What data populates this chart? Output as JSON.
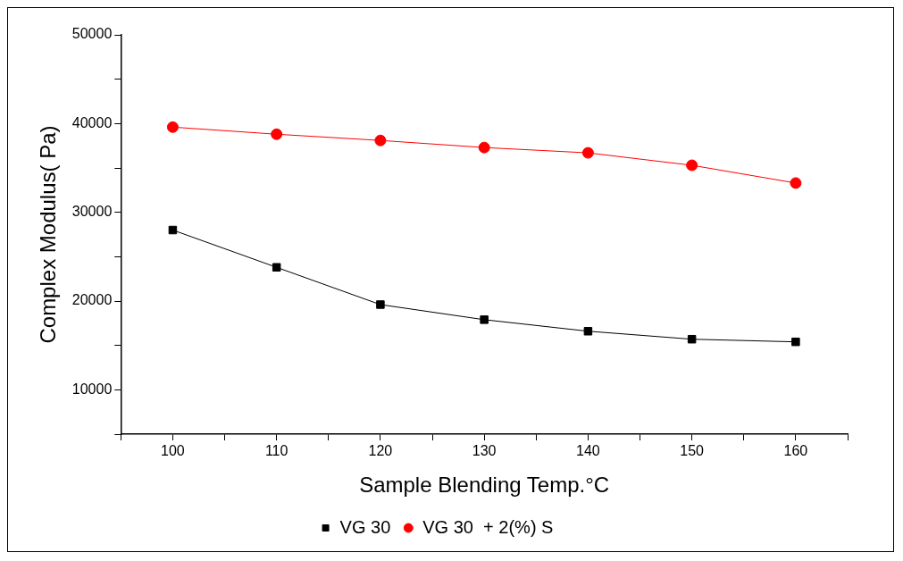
{
  "chart_data": {
    "type": "line",
    "xlabel": "Sample Blending Temp.°C",
    "ylabel": "Complex Modulus( Pa)",
    "x": [
      100,
      110,
      120,
      130,
      140,
      150,
      160
    ],
    "series": [
      {
        "name": "VG 30",
        "color": "#000000",
        "marker": "square",
        "values": [
          28000,
          23800,
          19600,
          17900,
          16600,
          15700,
          15400
        ]
      },
      {
        "name": "VG 30  + 2(%) S",
        "color": "#ff0000",
        "marker": "circle",
        "values": [
          39600,
          38800,
          38100,
          37300,
          36700,
          35300,
          33300
        ]
      }
    ],
    "xlim": [
      95,
      165
    ],
    "xticks": [
      {
        "value": 95,
        "label": null
      },
      100,
      {
        "value": 105,
        "label": null
      },
      110,
      {
        "value": 115,
        "label": null
      },
      120,
      {
        "value": 125,
        "label": null
      },
      130,
      {
        "value": 135,
        "label": null
      },
      140,
      {
        "value": 145,
        "label": null
      },
      150,
      {
        "value": 155,
        "label": null
      },
      160,
      {
        "value": 165,
        "label": null
      }
    ],
    "ylim": [
      5000,
      50000
    ],
    "yticks": [
      {
        "value": 5000,
        "label": null
      },
      10000,
      {
        "value": 15000,
        "label": null
      },
      20000,
      {
        "value": 25000,
        "label": null
      },
      30000,
      {
        "value": 35000,
        "label": null
      },
      40000,
      {
        "value": 45000,
        "label": null
      },
      50000
    ],
    "grid": false,
    "legend": "bottom",
    "line_style": "solid"
  }
}
